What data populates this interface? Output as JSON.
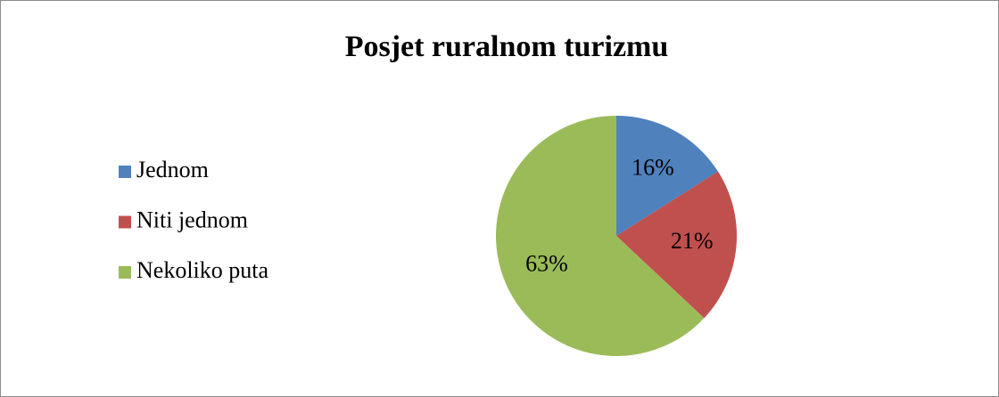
{
  "chart_data": {
    "type": "pie",
    "title": "Posjet ruralnom turizmu",
    "categories": [
      "Jednom",
      "Niti jednom",
      "Nekoliko puta"
    ],
    "values": [
      16,
      21,
      63
    ],
    "value_labels": [
      "16%",
      "21%",
      "63%"
    ],
    "colors": [
      "#4f81bd",
      "#c0504d",
      "#9bbb59"
    ],
    "legend": "left"
  }
}
